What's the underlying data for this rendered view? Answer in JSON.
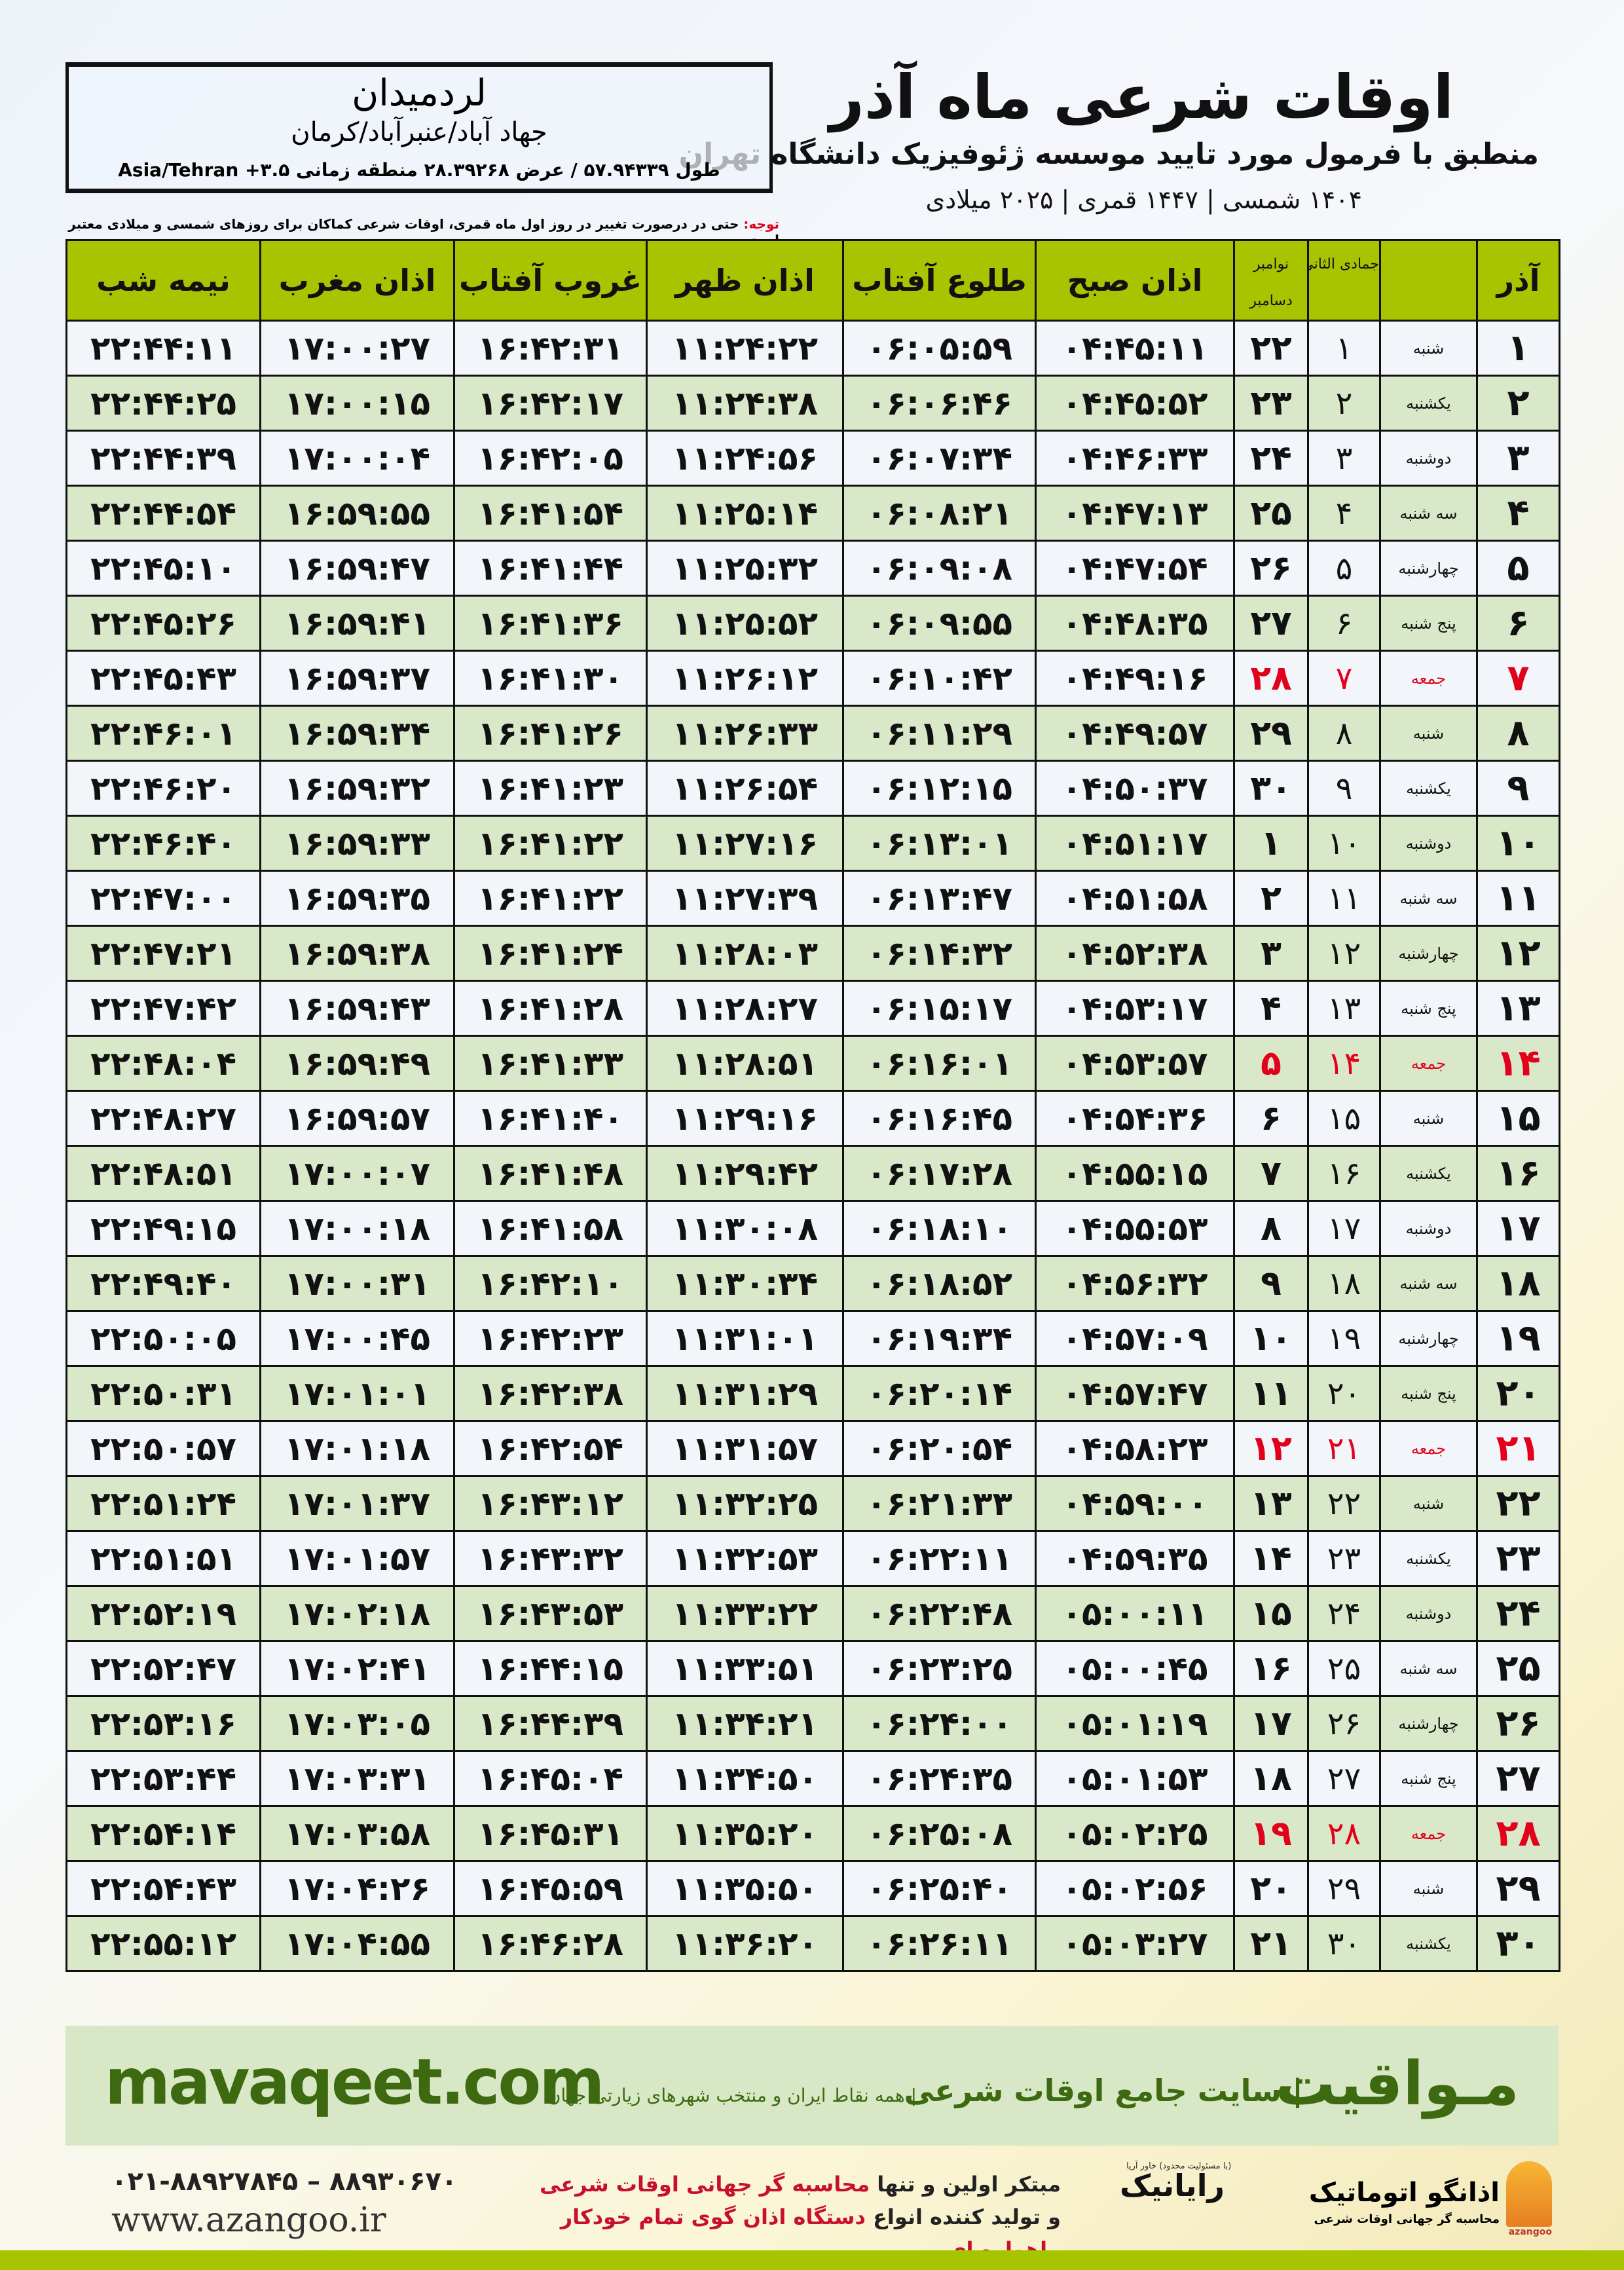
{
  "header": {
    "title": "اوقات شرعی ماه آذر",
    "subtitle": "منطبق با فرمول مورد تایید موسسه ژئوفیزیک دانشگاه تهران",
    "dateline": "۱۴۰۴ شمسی | ۱۴۴۷ قمری | ۲۰۲۵ میلادی"
  },
  "location": {
    "name": "لردمیدان",
    "region": "جهاد آباد/عنبرآباد/کرمان",
    "coords": "طول ۵۷.۹۴۳۳۹ / عرض ۲۸.۳۹۲۶۸ منطقه زمانی ۳.۵+ Asia/Tehran"
  },
  "note": {
    "label": "توجه:",
    "text": " حتی در درصورت تغییر در روز اول ماه قمری، اوقات شرعی کماکان برای روزهای شمسی و میلادی معتبر است."
  },
  "table": {
    "headers": {
      "azar": "آذر",
      "hijri": "جمادی الثانی",
      "nov": "نوامبر",
      "dec": "دسامبر",
      "fajr": "اذان صبح",
      "sunrise": "طلوع آفتاب",
      "dhuhr": "اذان ظهر",
      "sunset": "غروب آفتاب",
      "maghrib": "اذان مغرب",
      "midnight": "نیمه شب"
    },
    "friday_color": "#e3001b",
    "header_color": "#a8c400",
    "rows": [
      [
        "۱",
        "شنبه",
        "۱",
        "۲۲",
        "۰۴:۴۵:۱۱",
        "۰۶:۰۵:۵۹",
        "۱۱:۲۴:۲۲",
        "۱۶:۴۲:۳۱",
        "۱۷:۰۰:۲۷",
        "۲۲:۴۴:۱۱",
        false
      ],
      [
        "۲",
        "یکشنبه",
        "۲",
        "۲۳",
        "۰۴:۴۵:۵۲",
        "۰۶:۰۶:۴۶",
        "۱۱:۲۴:۳۸",
        "۱۶:۴۲:۱۷",
        "۱۷:۰۰:۱۵",
        "۲۲:۴۴:۲۵",
        false
      ],
      [
        "۳",
        "دوشنبه",
        "۳",
        "۲۴",
        "۰۴:۴۶:۳۳",
        "۰۶:۰۷:۳۴",
        "۱۱:۲۴:۵۶",
        "۱۶:۴۲:۰۵",
        "۱۷:۰۰:۰۴",
        "۲۲:۴۴:۳۹",
        false
      ],
      [
        "۴",
        "سه شنبه",
        "۴",
        "۲۵",
        "۰۴:۴۷:۱۳",
        "۰۶:۰۸:۲۱",
        "۱۱:۲۵:۱۴",
        "۱۶:۴۱:۵۴",
        "۱۶:۵۹:۵۵",
        "۲۲:۴۴:۵۴",
        false
      ],
      [
        "۵",
        "چهارشنبه",
        "۵",
        "۲۶",
        "۰۴:۴۷:۵۴",
        "۰۶:۰۹:۰۸",
        "۱۱:۲۵:۳۲",
        "۱۶:۴۱:۴۴",
        "۱۶:۵۹:۴۷",
        "۲۲:۴۵:۱۰",
        false
      ],
      [
        "۶",
        "پنج شنبه",
        "۶",
        "۲۷",
        "۰۴:۴۸:۳۵",
        "۰۶:۰۹:۵۵",
        "۱۱:۲۵:۵۲",
        "۱۶:۴۱:۳۶",
        "۱۶:۵۹:۴۱",
        "۲۲:۴۵:۲۶",
        false
      ],
      [
        "۷",
        "جمعه",
        "۷",
        "۲۸",
        "۰۴:۴۹:۱۶",
        "۰۶:۱۰:۴۲",
        "۱۱:۲۶:۱۲",
        "۱۶:۴۱:۳۰",
        "۱۶:۵۹:۳۷",
        "۲۲:۴۵:۴۳",
        true
      ],
      [
        "۸",
        "شنبه",
        "۸",
        "۲۹",
        "۰۴:۴۹:۵۷",
        "۰۶:۱۱:۲۹",
        "۱۱:۲۶:۳۳",
        "۱۶:۴۱:۲۶",
        "۱۶:۵۹:۳۴",
        "۲۲:۴۶:۰۱",
        false
      ],
      [
        "۹",
        "یکشنبه",
        "۹",
        "۳۰",
        "۰۴:۵۰:۳۷",
        "۰۶:۱۲:۱۵",
        "۱۱:۲۶:۵۴",
        "۱۶:۴۱:۲۳",
        "۱۶:۵۹:۳۲",
        "۲۲:۴۶:۲۰",
        false
      ],
      [
        "۱۰",
        "دوشنبه",
        "۱۰",
        "۱",
        "۰۴:۵۱:۱۷",
        "۰۶:۱۳:۰۱",
        "۱۱:۲۷:۱۶",
        "۱۶:۴۱:۲۲",
        "۱۶:۵۹:۳۳",
        "۲۲:۴۶:۴۰",
        false
      ],
      [
        "۱۱",
        "سه شنبه",
        "۱۱",
        "۲",
        "۰۴:۵۱:۵۸",
        "۰۶:۱۳:۴۷",
        "۱۱:۲۷:۳۹",
        "۱۶:۴۱:۲۲",
        "۱۶:۵۹:۳۵",
        "۲۲:۴۷:۰۰",
        false
      ],
      [
        "۱۲",
        "چهارشنبه",
        "۱۲",
        "۳",
        "۰۴:۵۲:۳۸",
        "۰۶:۱۴:۳۲",
        "۱۱:۲۸:۰۳",
        "۱۶:۴۱:۲۴",
        "۱۶:۵۹:۳۸",
        "۲۲:۴۷:۲۱",
        false
      ],
      [
        "۱۳",
        "پنج شنبه",
        "۱۳",
        "۴",
        "۰۴:۵۳:۱۷",
        "۰۶:۱۵:۱۷",
        "۱۱:۲۸:۲۷",
        "۱۶:۴۱:۲۸",
        "۱۶:۵۹:۴۳",
        "۲۲:۴۷:۴۲",
        false
      ],
      [
        "۱۴",
        "جمعه",
        "۱۴",
        "۵",
        "۰۴:۵۳:۵۷",
        "۰۶:۱۶:۰۱",
        "۱۱:۲۸:۵۱",
        "۱۶:۴۱:۳۳",
        "۱۶:۵۹:۴۹",
        "۲۲:۴۸:۰۴",
        true
      ],
      [
        "۱۵",
        "شنبه",
        "۱۵",
        "۶",
        "۰۴:۵۴:۳۶",
        "۰۶:۱۶:۴۵",
        "۱۱:۲۹:۱۶",
        "۱۶:۴۱:۴۰",
        "۱۶:۵۹:۵۷",
        "۲۲:۴۸:۲۷",
        false
      ],
      [
        "۱۶",
        "یکشنبه",
        "۱۶",
        "۷",
        "۰۴:۵۵:۱۵",
        "۰۶:۱۷:۲۸",
        "۱۱:۲۹:۴۲",
        "۱۶:۴۱:۴۸",
        "۱۷:۰۰:۰۷",
        "۲۲:۴۸:۵۱",
        false
      ],
      [
        "۱۷",
        "دوشنبه",
        "۱۷",
        "۸",
        "۰۴:۵۵:۵۳",
        "۰۶:۱۸:۱۰",
        "۱۱:۳۰:۰۸",
        "۱۶:۴۱:۵۸",
        "۱۷:۰۰:۱۸",
        "۲۲:۴۹:۱۵",
        false
      ],
      [
        "۱۸",
        "سه شنبه",
        "۱۸",
        "۹",
        "۰۴:۵۶:۳۲",
        "۰۶:۱۸:۵۲",
        "۱۱:۳۰:۳۴",
        "۱۶:۴۲:۱۰",
        "۱۷:۰۰:۳۱",
        "۲۲:۴۹:۴۰",
        false
      ],
      [
        "۱۹",
        "چهارشنبه",
        "۱۹",
        "۱۰",
        "۰۴:۵۷:۰۹",
        "۰۶:۱۹:۳۴",
        "۱۱:۳۱:۰۱",
        "۱۶:۴۲:۲۳",
        "۱۷:۰۰:۴۵",
        "۲۲:۵۰:۰۵",
        false
      ],
      [
        "۲۰",
        "پنج شنبه",
        "۲۰",
        "۱۱",
        "۰۴:۵۷:۴۷",
        "۰۶:۲۰:۱۴",
        "۱۱:۳۱:۲۹",
        "۱۶:۴۲:۳۸",
        "۱۷:۰۱:۰۱",
        "۲۲:۵۰:۳۱",
        false
      ],
      [
        "۲۱",
        "جمعه",
        "۲۱",
        "۱۲",
        "۰۴:۵۸:۲۳",
        "۰۶:۲۰:۵۴",
        "۱۱:۳۱:۵۷",
        "۱۶:۴۲:۵۴",
        "۱۷:۰۱:۱۸",
        "۲۲:۵۰:۵۷",
        true
      ],
      [
        "۲۲",
        "شنبه",
        "۲۲",
        "۱۳",
        "۰۴:۵۹:۰۰",
        "۰۶:۲۱:۳۳",
        "۱۱:۳۲:۲۵",
        "۱۶:۴۳:۱۲",
        "۱۷:۰۱:۳۷",
        "۲۲:۵۱:۲۴",
        false
      ],
      [
        "۲۳",
        "یکشنبه",
        "۲۳",
        "۱۴",
        "۰۴:۵۹:۳۵",
        "۰۶:۲۲:۱۱",
        "۱۱:۳۲:۵۳",
        "۱۶:۴۳:۳۲",
        "۱۷:۰۱:۵۷",
        "۲۲:۵۱:۵۱",
        false
      ],
      [
        "۲۴",
        "دوشنبه",
        "۲۴",
        "۱۵",
        "۰۵:۰۰:۱۱",
        "۰۶:۲۲:۴۸",
        "۱۱:۳۳:۲۲",
        "۱۶:۴۳:۵۳",
        "۱۷:۰۲:۱۸",
        "۲۲:۵۲:۱۹",
        false
      ],
      [
        "۲۵",
        "سه شنبه",
        "۲۵",
        "۱۶",
        "۰۵:۰۰:۴۵",
        "۰۶:۲۳:۲۵",
        "۱۱:۳۳:۵۱",
        "۱۶:۴۴:۱۵",
        "۱۷:۰۲:۴۱",
        "۲۲:۵۲:۴۷",
        false
      ],
      [
        "۲۶",
        "چهارشنبه",
        "۲۶",
        "۱۷",
        "۰۵:۰۱:۱۹",
        "۰۶:۲۴:۰۰",
        "۱۱:۳۴:۲۱",
        "۱۶:۴۴:۳۹",
        "۱۷:۰۳:۰۵",
        "۲۲:۵۳:۱۶",
        false
      ],
      [
        "۲۷",
        "پنج شنبه",
        "۲۷",
        "۱۸",
        "۰۵:۰۱:۵۳",
        "۰۶:۲۴:۳۵",
        "۱۱:۳۴:۵۰",
        "۱۶:۴۵:۰۴",
        "۱۷:۰۳:۳۱",
        "۲۲:۵۳:۴۴",
        false
      ],
      [
        "۲۸",
        "جمعه",
        "۲۸",
        "۱۹",
        "۰۵:۰۲:۲۵",
        "۰۶:۲۵:۰۸",
        "۱۱:۳۵:۲۰",
        "۱۶:۴۵:۳۱",
        "۱۷:۰۳:۵۸",
        "۲۲:۵۴:۱۴",
        true
      ],
      [
        "۲۹",
        "شنبه",
        "۲۹",
        "۲۰",
        "۰۵:۰۲:۵۶",
        "۰۶:۲۵:۴۰",
        "۱۱:۳۵:۵۰",
        "۱۶:۴۵:۵۹",
        "۱۷:۰۴:۲۶",
        "۲۲:۵۴:۴۳",
        false
      ],
      [
        "۳۰",
        "یکشنبه",
        "۳۰",
        "۲۱",
        "۰۵:۰۳:۲۷",
        "۰۶:۲۶:۱۱",
        "۱۱:۳۶:۲۰",
        "۱۶:۴۶:۲۸",
        "۱۷:۰۴:۵۵",
        "۲۲:۵۵:۱۲",
        false
      ]
    ]
  },
  "banner": {
    "name": "مـواقیت",
    "desc": "| سایت جامع اوقات شرعی",
    "sub": "| همه نقاط ایران و منتخب شهرهای زیارتی جهان",
    "url": "mavaqeet.com"
  },
  "footer": {
    "phones": "۰۲۱-۸۸۹۲۷۸۴۵ – ۸۸۹۳۰۶۷۰",
    "website": "www.azangoo.ir",
    "promo1a": "مبتکر اولین و تنها ",
    "promo1b": "محاسبه گر جهانی اوقات شرعی",
    "promo2a": "و تولید کننده انواع ",
    "promo2b": "دستگاه اذان گوی تمام خودکار ماهواره ای",
    "rayanic": "رایانیک",
    "rayanic_sub": "(با مسئولیت محدود) خاور آریا",
    "azangoo": "اذانگو اتوماتیک",
    "azangoo_sub": "محاسبه گر جهانی اوقات شرعی",
    "azangoo_en": "azangoo"
  }
}
